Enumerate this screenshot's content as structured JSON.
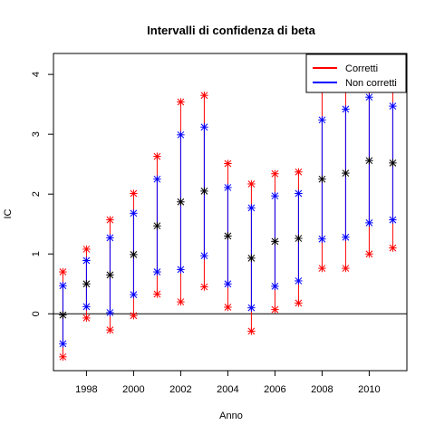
{
  "chart_data": {
    "type": "errorbar",
    "title": "Intervalli di confidenza di beta",
    "xlabel": "Anno",
    "ylabel": "IC",
    "xlim": [
      1996.6,
      2011.6
    ],
    "ylim": [
      -0.95,
      4.35
    ],
    "xticks": [
      1998,
      2000,
      2002,
      2004,
      2006,
      2008,
      2010
    ],
    "yticks": [
      0,
      1,
      2,
      3,
      4
    ],
    "reference_line_y": 0,
    "grid": false,
    "legend": {
      "position": "top-right",
      "entries": [
        "Corretti",
        "Non corretti"
      ]
    },
    "x": [
      1997,
      1998,
      1999,
      2000,
      2001,
      2002,
      2003,
      2004,
      2005,
      2006,
      2007,
      2008,
      2009,
      2010,
      2011
    ],
    "estimate": [
      -0.02,
      0.5,
      0.65,
      0.99,
      1.47,
      1.87,
      2.05,
      1.3,
      0.93,
      1.21,
      1.26,
      2.25,
      2.35,
      2.56,
      2.52
    ],
    "series": [
      {
        "name": "Corretti",
        "color": "#ff0000",
        "lower": [
          -0.72,
          -0.07,
          -0.27,
          -0.03,
          0.33,
          0.2,
          0.45,
          0.11,
          -0.29,
          0.07,
          0.18,
          0.76,
          0.76,
          1.0,
          1.1
        ],
        "upper": [
          0.7,
          1.08,
          1.57,
          2.01,
          2.63,
          3.54,
          3.65,
          2.51,
          2.17,
          2.34,
          2.37,
          3.75,
          3.95,
          4.1,
          3.95
        ]
      },
      {
        "name": "Non corretti",
        "color": "#0000ff",
        "lower": [
          -0.5,
          0.12,
          0.02,
          0.32,
          0.7,
          0.74,
          0.97,
          0.5,
          0.1,
          0.46,
          0.55,
          1.25,
          1.28,
          1.52,
          1.57
        ],
        "upper": [
          0.47,
          0.89,
          1.27,
          1.68,
          2.25,
          2.99,
          3.12,
          2.11,
          1.77,
          1.97,
          2.01,
          3.24,
          3.42,
          3.62,
          3.47
        ]
      }
    ],
    "estimate_color": "#000000",
    "axis_color": "#000000"
  }
}
